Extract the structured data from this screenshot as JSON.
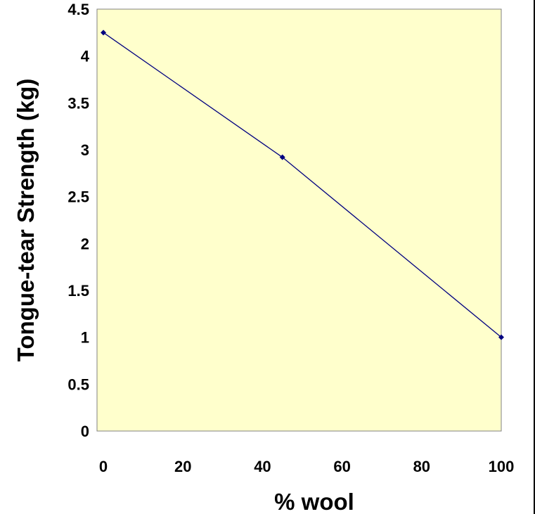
{
  "chart_data": {
    "type": "line",
    "title": "",
    "xlabel": "% wool",
    "ylabel": "Tongue-tear Strength (kg)",
    "xlim": [
      0,
      100
    ],
    "ylim": [
      0,
      4.5
    ],
    "x_ticks": [
      0,
      20,
      40,
      60,
      80,
      100
    ],
    "y_ticks": [
      0,
      0.5,
      1,
      1.5,
      2,
      2.5,
      3,
      3.5,
      4,
      4.5
    ],
    "x_tick_labels": [
      "0",
      "20",
      "40",
      "60",
      "80",
      "100"
    ],
    "y_tick_labels": [
      "0",
      "0.5",
      "1",
      "1.5",
      "2",
      "2.5",
      "3",
      "3.5",
      "4",
      "4.5"
    ],
    "series": [
      {
        "x": [
          0,
          45,
          100
        ],
        "y": [
          4.25,
          2.92,
          1.0
        ],
        "color": "#000080"
      }
    ],
    "grid": false,
    "legend": "none",
    "plot_background": "#FFFFCC",
    "plot_border_color": "#808080"
  }
}
